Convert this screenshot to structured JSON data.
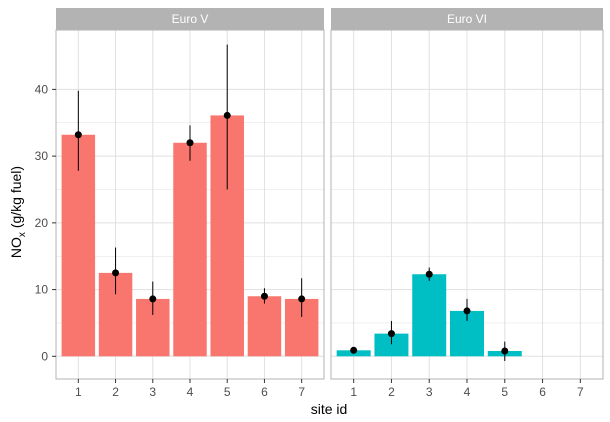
{
  "chart_data": {
    "type": "bar",
    "facets": [
      {
        "label": "Euro V",
        "bar_color": "#f8766d",
        "x": [
          1,
          2,
          3,
          4,
          5,
          6,
          7
        ],
        "values": [
          33.2,
          12.5,
          8.6,
          32.0,
          36.1,
          9.0,
          8.6
        ],
        "error_low": [
          27.8,
          9.3,
          6.2,
          29.3,
          25.0,
          7.9,
          5.9
        ],
        "error_high": [
          39.8,
          16.3,
          11.2,
          34.6,
          46.7,
          10.2,
          11.7
        ]
      },
      {
        "label": "Euro VI",
        "bar_color": "#00bfc4",
        "x": [
          1,
          2,
          3,
          4,
          5
        ],
        "values": [
          0.9,
          3.4,
          12.3,
          6.8,
          0.8
        ],
        "error_low": [
          0.6,
          1.8,
          11.3,
          5.3,
          -0.7
        ],
        "error_high": [
          1.2,
          5.3,
          13.3,
          8.6,
          2.2
        ]
      }
    ],
    "x_ticks": [
      "1",
      "2",
      "3",
      "4",
      "5",
      "6",
      "7"
    ],
    "y_ticks": [
      "0",
      "10",
      "20",
      "30",
      "40"
    ],
    "ylim": [
      -3.4,
      48.9
    ],
    "xlim": [
      0.4,
      7.6
    ],
    "xlabel": "site id",
    "ylabel_main": "NO",
    "ylabel_sub": "x",
    "ylabel_rest": " (g/kg fuel)",
    "grid": true,
    "point_color": "#000000",
    "strip_color": "#b3b3b3",
    "panel_border_color": "#b3b3b3",
    "grid_color": "#e0e0e0"
  }
}
